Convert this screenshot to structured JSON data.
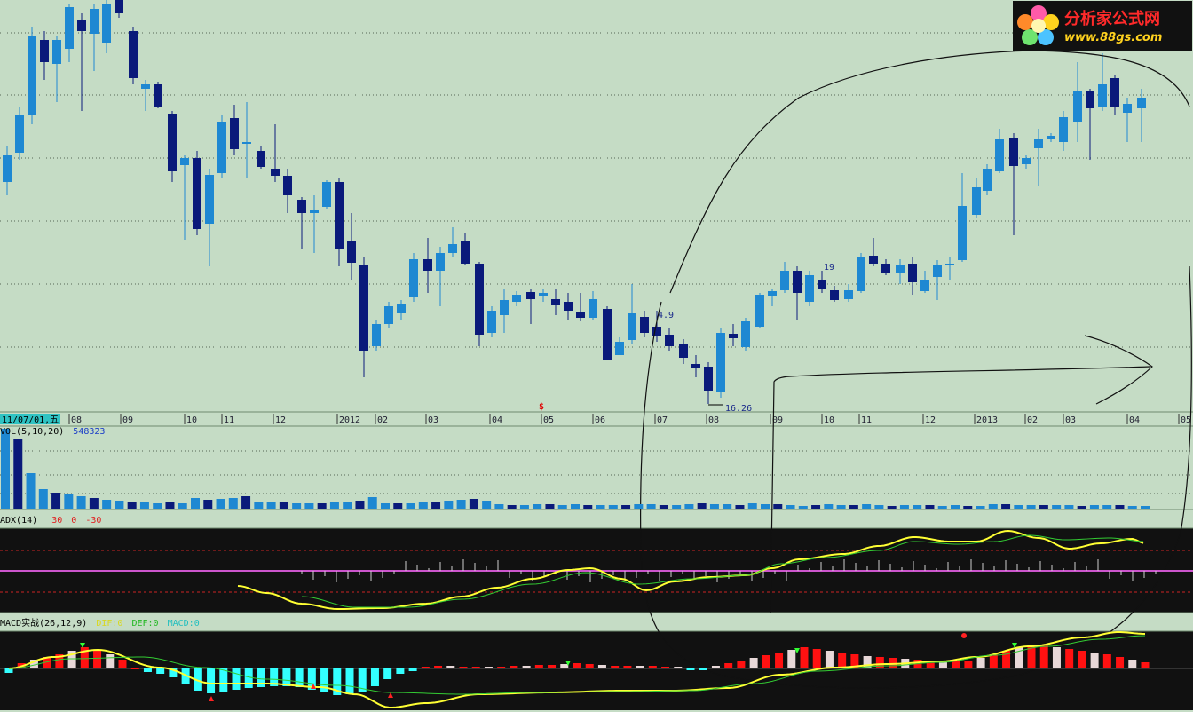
{
  "logo": {
    "title": "分析家公式网",
    "url": "www.88gs.com"
  },
  "price_panel": {
    "date_label": "11/07/01,五",
    "month_labels": [
      {
        "text": "08",
        "x": 80
      },
      {
        "text": "09",
        "x": 138
      },
      {
        "text": "10",
        "x": 210
      },
      {
        "text": "11",
        "x": 252
      },
      {
        "text": "12",
        "x": 310
      },
      {
        "text": "2012",
        "x": 382
      },
      {
        "text": "02",
        "x": 425
      },
      {
        "text": "03",
        "x": 482
      },
      {
        "text": "04",
        "x": 554
      },
      {
        "text": "05",
        "x": 612
      },
      {
        "text": "06",
        "x": 670
      },
      {
        "text": "07",
        "x": 740
      },
      {
        "text": "08",
        "x": 798
      },
      {
        "text": "09",
        "x": 870
      },
      {
        "text": "10",
        "x": 928
      },
      {
        "text": "11",
        "x": 970
      },
      {
        "text": "12",
        "x": 1042
      },
      {
        "text": "2013",
        "x": 1100
      },
      {
        "text": "02",
        "x": 1157
      },
      {
        "text": "03",
        "x": 1200
      },
      {
        "text": "04",
        "x": 1272
      },
      {
        "text": "05",
        "x": 1330
      }
    ],
    "annotations": [
      {
        "text": "4.9",
        "x": 741,
        "y": 348
      },
      {
        "text": "19",
        "x": 928,
        "y": 294
      },
      {
        "text": "16.26",
        "x": 817,
        "y": 453
      }
    ],
    "marker": "$"
  },
  "vol_panel": {
    "title": "VOL(5,10,20)",
    "value": "548323"
  },
  "adx_panel": {
    "title": "ADX(14)",
    "levels": [
      "30",
      "0",
      "-30"
    ]
  },
  "macd_panel": {
    "title": "MACD实战(26,12,9)",
    "dif": "DIF:0",
    "def": "DEF:0",
    "macd": "MACD:0"
  },
  "colors": {
    "up": "#1e88d2",
    "down": "#0a1a7a",
    "bg": "#c5dcc5",
    "dark_bg": "#111111",
    "yellow": "#ffff33",
    "green": "#33cc33",
    "cyan": "#33ffff",
    "red": "#ff1111",
    "magenta": "#cc55cc"
  },
  "chart_data": [
    {
      "type": "candlestick",
      "title": "",
      "x": [
        "2011-07",
        "2011-08",
        "2011-09",
        "2011-10",
        "2011-11",
        "2011-12",
        "2012-01",
        "2012-02",
        "2012-03",
        "2012-04",
        "2012-05",
        "2012-06",
        "2012-07",
        "2012-08",
        "2012-09",
        "2012-10",
        "2012-11",
        "2012-12",
        "2013-01",
        "2013-02",
        "2013-03",
        "2013-04"
      ],
      "annotations": [
        {
          "label": "4.9"
        },
        {
          "label": "19"
        },
        {
          "label": "16.26"
        }
      ]
    },
    {
      "type": "bar",
      "title": "VOL(5,10,20)",
      "latest_value": 548323
    },
    {
      "type": "line",
      "title": "ADX(14)",
      "reference_levels": [
        30,
        0,
        -30
      ]
    },
    {
      "type": "bar",
      "title": "MACD实战(26,12,9)",
      "series": [
        {
          "name": "DIF",
          "last": 0
        },
        {
          "name": "DEF",
          "last": 0
        },
        {
          "name": "MACD",
          "last": 0
        }
      ]
    }
  ]
}
